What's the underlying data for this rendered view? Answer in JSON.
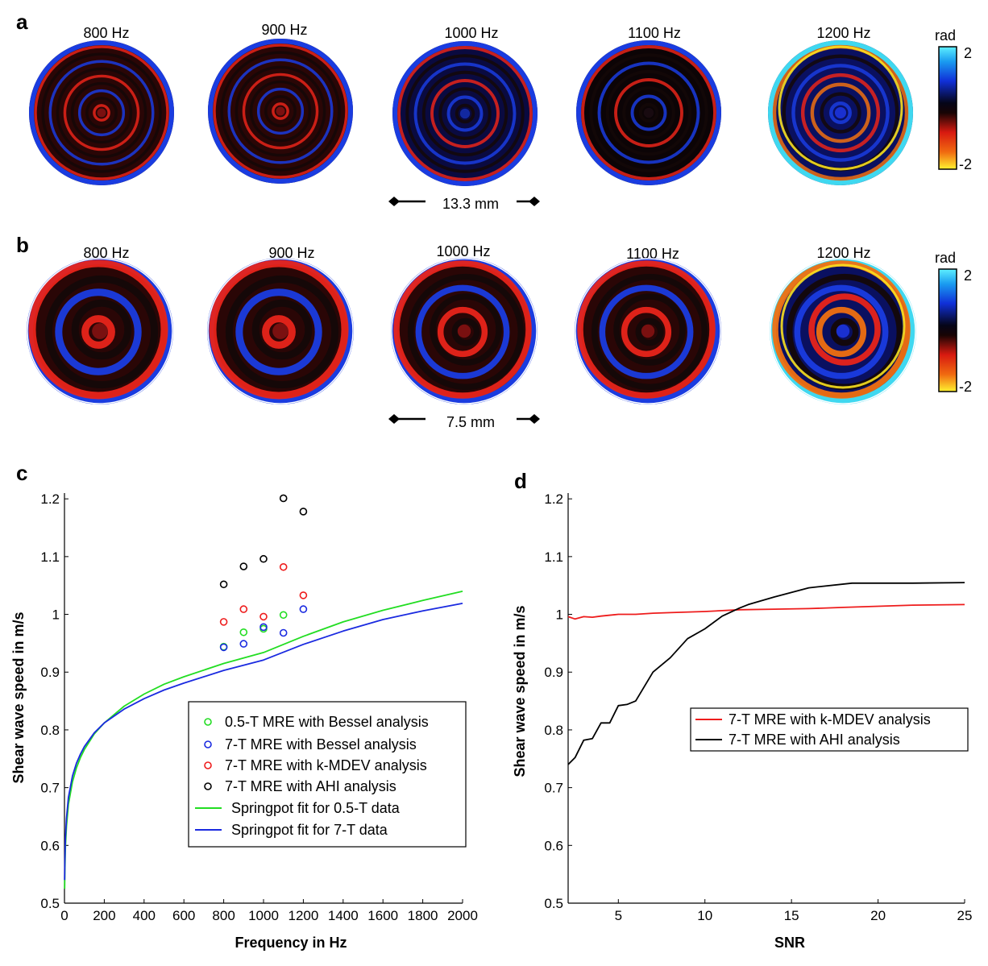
{
  "figure": {
    "panel_a": {
      "letter": "a",
      "maps": [
        {
          "label": "800 Hz",
          "style": "red",
          "ringCount": 9
        },
        {
          "label": "900 Hz",
          "style": "red",
          "ringCount": 9
        },
        {
          "label": "1000 Hz",
          "style": "blue",
          "ringCount": 8
        },
        {
          "label": "1100 Hz",
          "style": "dark",
          "ringCount": 8
        },
        {
          "label": "1200 Hz",
          "style": "bright",
          "ringCount": 7
        }
      ],
      "colorbar": {
        "unit": "rad",
        "max_label": "2",
        "min_label": "-2"
      },
      "scale_bar": "13.3 mm"
    },
    "panel_b": {
      "letter": "b",
      "maps": [
        {
          "label": "800 Hz",
          "style": "red",
          "ringCount": 5
        },
        {
          "label": "900 Hz",
          "style": "red",
          "ringCount": 5
        },
        {
          "label": "1000 Hz",
          "style": "red",
          "ringCount": 6
        },
        {
          "label": "1100 Hz",
          "style": "red",
          "ringCount": 6
        },
        {
          "label": "1200 Hz",
          "style": "bright",
          "ringCount": 6
        }
      ],
      "colorbar": {
        "unit": "rad",
        "max_label": "2",
        "min_label": "-2"
      },
      "scale_bar": "7.5 mm"
    },
    "colors": {
      "red_phase": "#e8241a",
      "blue_phase": "#1a3ce0",
      "dark": "#140808",
      "cyan": "#3fd8f0",
      "yellow": "#f8e020",
      "orange": "#f07010"
    }
  },
  "chart_data": [
    {
      "panel": "c",
      "type": "scatter",
      "title": "",
      "xlabel": "Frequency in Hz",
      "ylabel": "Shear wave speed in m/s",
      "xlim": [
        0,
        2000
      ],
      "ylim": [
        0.5,
        1.21
      ],
      "xticks": [
        0,
        200,
        400,
        600,
        800,
        1000,
        1200,
        1400,
        1600,
        1800,
        2000
      ],
      "yticks": [
        0.5,
        0.6,
        0.7,
        0.8,
        0.9,
        1.0,
        1.1,
        1.2
      ],
      "ytick_labels": [
        "0.5",
        "0.6",
        "0.7",
        "0.8",
        "0.9",
        "1",
        "1.1",
        "1.2"
      ],
      "legend_position": "lower-right",
      "series": [
        {
          "name": "0.5-T MRE with Bessel analysis",
          "kind": "points",
          "color": "#22dd22",
          "x": [
            800,
            900,
            1000,
            1100
          ],
          "y": [
            0.944,
            0.969,
            0.975,
            0.999
          ]
        },
        {
          "name": "7-T MRE with Bessel analysis",
          "kind": "points",
          "color": "#1a2ae0",
          "x": [
            800,
            900,
            1000,
            1100,
            1200
          ],
          "y": [
            0.943,
            0.949,
            0.978,
            0.968,
            1.009
          ]
        },
        {
          "name": "7-T MRE with k-MDEV analysis",
          "kind": "points",
          "color": "#ee1c1c",
          "x": [
            800,
            900,
            1000,
            1100,
            1200
          ],
          "y": [
            0.987,
            1.009,
            0.996,
            1.082,
            1.033
          ]
        },
        {
          "name": "7-T MRE with AHI analysis",
          "kind": "points",
          "color": "#000000",
          "x": [
            800,
            900,
            1000,
            1100,
            1200
          ],
          "y": [
            1.052,
            1.083,
            1.096,
            1.201,
            1.178
          ]
        },
        {
          "name": "Springpot fit for 0.5-T data",
          "kind": "line",
          "color": "#22dd22",
          "x": [
            1,
            2,
            5,
            10,
            20,
            40,
            60,
            80,
            100,
            150,
            200,
            300,
            400,
            500,
            600,
            800,
            1000,
            1200,
            1400,
            1600,
            1800,
            2000
          ],
          "y": [
            0.525,
            0.556,
            0.598,
            0.633,
            0.671,
            0.71,
            0.734,
            0.752,
            0.766,
            0.793,
            0.812,
            0.841,
            0.862,
            0.879,
            0.892,
            0.915,
            0.934,
            0.962,
            0.987,
            1.007,
            1.024,
            1.04
          ]
        },
        {
          "name": "Springpot fit for 7-T data",
          "kind": "line",
          "color": "#1a2ae0",
          "x": [
            1,
            2,
            5,
            10,
            20,
            40,
            60,
            80,
            100,
            150,
            200,
            300,
            400,
            500,
            600,
            800,
            1000,
            1200,
            1400,
            1600,
            1800,
            2000
          ],
          "y": [
            0.54,
            0.572,
            0.613,
            0.647,
            0.683,
            0.72,
            0.742,
            0.758,
            0.771,
            0.795,
            0.812,
            0.836,
            0.854,
            0.869,
            0.881,
            0.903,
            0.921,
            0.948,
            0.971,
            0.991,
            1.006,
            1.019
          ]
        }
      ]
    },
    {
      "panel": "d",
      "type": "line",
      "title": "",
      "xlabel": "SNR",
      "ylabel": "Shear wave speed in m/s",
      "xlim": [
        2.1,
        25
      ],
      "ylim": [
        0.5,
        1.21
      ],
      "xticks": [
        5,
        10,
        15,
        20,
        25
      ],
      "yticks": [
        0.5,
        0.6,
        0.7,
        0.8,
        0.9,
        1.0,
        1.1,
        1.2
      ],
      "ytick_labels": [
        "0.5",
        "0.6",
        "0.7",
        "0.8",
        "0.9",
        "1",
        "1.1",
        "1.2"
      ],
      "legend_position": "middle-right",
      "series": [
        {
          "name": "7-T MRE with k-MDEV analysis",
          "color": "#ee1c1c",
          "x": [
            2.1,
            2.5,
            3.0,
            3.5,
            4.0,
            5.0,
            6.0,
            7.0,
            8.0,
            10.0,
            12.0,
            14.0,
            16.0,
            18.0,
            20.0,
            22.0,
            25.0
          ],
          "y": [
            0.996,
            0.992,
            0.996,
            0.995,
            0.997,
            1.0,
            1.0,
            1.002,
            1.003,
            1.005,
            1.008,
            1.009,
            1.01,
            1.012,
            1.014,
            1.016,
            1.017
          ]
        },
        {
          "name": "7-T MRE with AHI analysis",
          "color": "#000000",
          "x": [
            2.1,
            2.5,
            3.0,
            3.5,
            4.0,
            4.5,
            5.0,
            5.5,
            6.0,
            7.0,
            8.0,
            9.0,
            10.0,
            11.0,
            12.0,
            12.5,
            14.0,
            16.0,
            18.5,
            22.0,
            25.0
          ],
          "y": [
            0.74,
            0.752,
            0.782,
            0.785,
            0.812,
            0.812,
            0.842,
            0.844,
            0.85,
            0.9,
            0.925,
            0.958,
            0.975,
            0.997,
            1.011,
            1.017,
            1.03,
            1.046,
            1.054,
            1.054,
            1.055
          ]
        }
      ]
    }
  ]
}
